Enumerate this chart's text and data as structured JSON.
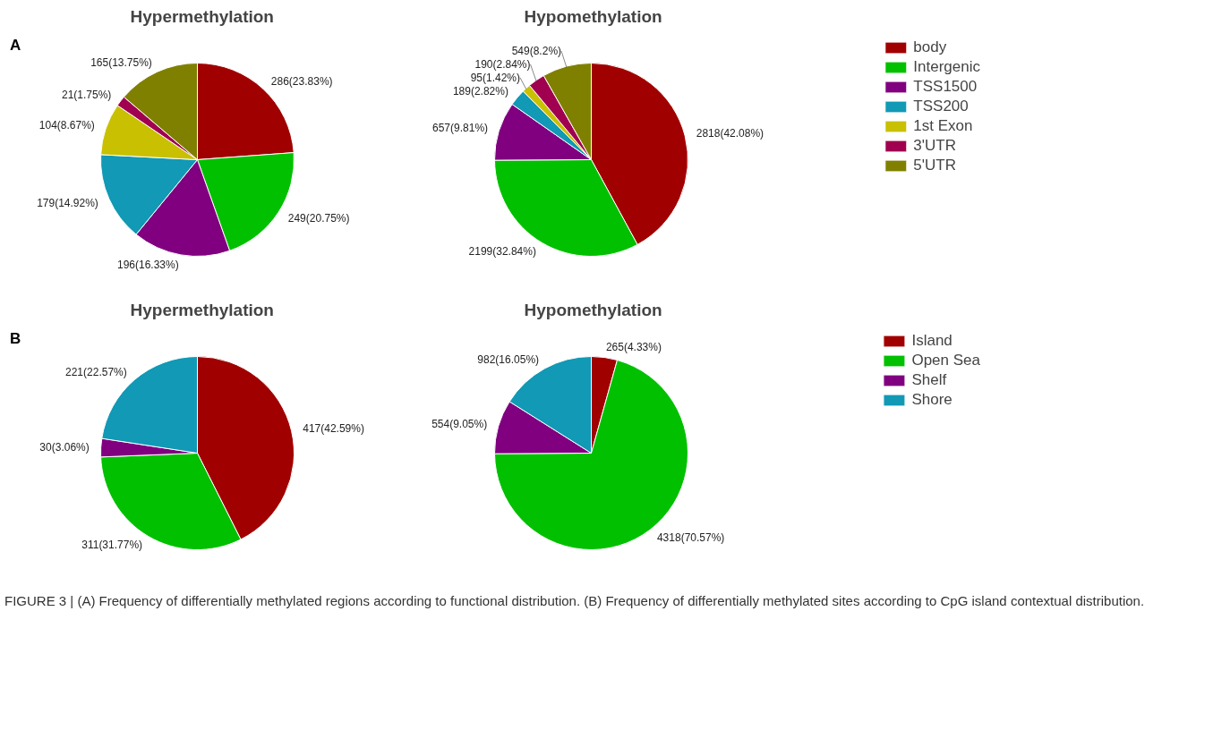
{
  "chart_data": [
    {
      "type": "pie",
      "title": "Hypermethylation",
      "annotations": [
        "A"
      ],
      "categories": [
        null,
        null,
        null,
        null,
        null,
        null,
        null
      ],
      "values": [
        286,
        249,
        196,
        179,
        104,
        21,
        165
      ],
      "value_labels": [
        "286(23.83%)",
        "249(20.75%)",
        "196(16.33%)",
        "179(14.92%)",
        "104(8.67%)",
        "21(1.75%)",
        "165(13.75%)"
      ],
      "colors": [
        "#a00000",
        "#00c000",
        "#800080",
        "#1199b5",
        "#c8c000",
        "#a0004f",
        "#808000"
      ]
    },
    {
      "type": "pie",
      "title": "Hypomethylation",
      "legend": "right",
      "categories": [
        "body",
        "Intergenic",
        "TSS1500",
        "TSS200",
        "1st Exon",
        "3'UTR",
        "5'UTR"
      ],
      "values": [
        2818,
        2199,
        657,
        189,
        95,
        190,
        549
      ],
      "value_labels": [
        "2818(42.08%)",
        "2199(32.84%)",
        "657(9.81%)",
        "189(2.82%)",
        "95(1.42%)",
        "190(2.84%)",
        "549(8.2%)"
      ],
      "colors": [
        "#a00000",
        "#00c000",
        "#800080",
        "#1199b5",
        "#c8c000",
        "#a0004f",
        "#808000"
      ]
    },
    {
      "type": "pie",
      "title": "Hypermethylation",
      "annotations": [
        "B"
      ],
      "categories": [
        null,
        null,
        null,
        null
      ],
      "values": [
        417,
        311,
        30,
        221
      ],
      "value_labels": [
        "417(42.59%)",
        "311(31.77%)",
        "30(3.06%)",
        "221(22.57%)"
      ],
      "colors": [
        "#a00000",
        "#00c000",
        "#800080",
        "#1199b5"
      ]
    },
    {
      "type": "pie",
      "title": "Hypomethylation",
      "legend": "right",
      "categories": [
        "Island",
        "Open Sea",
        "Shelf",
        "Shore"
      ],
      "values": [
        265,
        4318,
        554,
        982
      ],
      "value_labels": [
        "265(4.33%)",
        "4318(70.57%)",
        "554(9.05%)",
        "982(16.05%)"
      ],
      "colors": [
        "#a00000",
        "#00c000",
        "#800080",
        "#1199b5"
      ],
      "annotations": [
        "FIGURE 3 | (A) Frequency of differentially methylated regions according to functional distribution. (B) Frequency of differentially methylated sites according to CpG island contextual distribution."
      ]
    }
  ]
}
